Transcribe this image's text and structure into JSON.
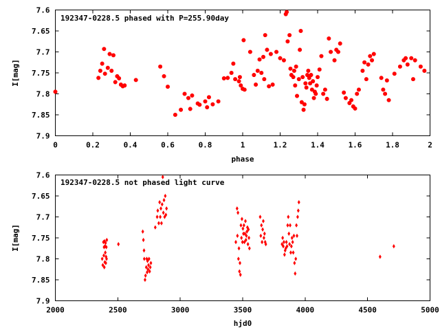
{
  "chart_data": [
    {
      "type": "scatter",
      "title": "192347-0228.5 phased with P=255.90day",
      "xlabel": "phase",
      "ylabel": "I[mag]",
      "xlim": [
        0,
        2
      ],
      "ylim": [
        7.6,
        7.9
      ],
      "y_inverted": true,
      "x_ticks": [
        "0",
        "0.2",
        "0.4",
        "0.6",
        "0.8",
        "1",
        "1.2",
        "1.4",
        "1.6",
        "1.8",
        "2"
      ],
      "y_ticks": [
        "7.6",
        "7.65",
        "7.7",
        "7.75",
        "7.8",
        "7.85",
        "7.9"
      ],
      "marker": "star",
      "color": "#ff0000",
      "series": [
        {
          "points": [
            [
              0.0,
              7.795
            ],
            [
              0.23,
              7.762
            ],
            [
              0.24,
              7.745
            ],
            [
              0.25,
              7.728
            ],
            [
              0.26,
              7.693
            ],
            [
              0.265,
              7.752
            ],
            [
              0.28,
              7.738
            ],
            [
              0.29,
              7.705
            ],
            [
              0.3,
              7.745
            ],
            [
              0.31,
              7.708
            ],
            [
              0.32,
              7.772
            ],
            [
              0.33,
              7.758
            ],
            [
              0.34,
              7.763
            ],
            [
              0.35,
              7.778
            ],
            [
              0.36,
              7.782
            ],
            [
              0.37,
              7.78
            ],
            [
              0.43,
              7.767
            ],
            [
              0.56,
              7.735
            ],
            [
              0.58,
              7.758
            ],
            [
              0.6,
              7.783
            ],
            [
              0.64,
              7.85
            ],
            [
              0.67,
              7.838
            ],
            [
              0.69,
              7.8
            ],
            [
              0.71,
              7.81
            ],
            [
              0.72,
              7.836
            ],
            [
              0.73,
              7.804
            ],
            [
              0.76,
              7.823
            ],
            [
              0.77,
              7.826
            ],
            [
              0.8,
              7.818
            ],
            [
              0.81,
              7.832
            ],
            [
              0.82,
              7.808
            ],
            [
              0.84,
              7.825
            ],
            [
              0.87,
              7.818
            ],
            [
              0.9,
              7.763
            ],
            [
              0.92,
              7.762
            ],
            [
              0.94,
              7.75
            ],
            [
              0.95,
              7.728
            ],
            [
              0.96,
              7.765
            ],
            [
              0.98,
              7.77
            ],
            [
              0.985,
              7.76
            ],
            [
              0.99,
              7.78
            ],
            [
              1.0,
              7.788
            ],
            [
              1.005,
              7.672
            ],
            [
              1.01,
              7.79
            ],
            [
              1.04,
              7.7
            ],
            [
              1.06,
              7.755
            ],
            [
              1.07,
              7.778
            ],
            [
              1.08,
              7.745
            ],
            [
              1.09,
              7.718
            ],
            [
              1.1,
              7.75
            ],
            [
              1.11,
              7.712
            ],
            [
              1.115,
              7.765
            ],
            [
              1.12,
              7.66
            ],
            [
              1.13,
              7.695
            ],
            [
              1.14,
              7.782
            ],
            [
              1.15,
              7.705
            ],
            [
              1.16,
              7.778
            ],
            [
              1.18,
              7.7
            ],
            [
              1.2,
              7.715
            ],
            [
              1.22,
              7.72
            ],
            [
              1.23,
              7.61
            ],
            [
              1.235,
              7.605
            ],
            [
              1.24,
              7.675
            ],
            [
              1.25,
              7.66
            ],
            [
              1.255,
              7.74
            ],
            [
              1.26,
              7.755
            ],
            [
              1.27,
              7.76
            ],
            [
              1.275,
              7.745
            ],
            [
              1.28,
              7.78
            ],
            [
              1.285,
              7.735
            ],
            [
              1.29,
              7.805
            ],
            [
              1.3,
              7.765
            ],
            [
              1.305,
              7.695
            ],
            [
              1.31,
              7.65
            ],
            [
              1.315,
              7.82
            ],
            [
              1.32,
              7.76
            ],
            [
              1.325,
              7.838
            ],
            [
              1.33,
              7.825
            ],
            [
              1.335,
              7.775
            ],
            [
              1.34,
              7.785
            ],
            [
              1.345,
              7.755
            ],
            [
              1.35,
              7.745
            ],
            [
              1.355,
              7.762
            ],
            [
              1.36,
              7.775
            ],
            [
              1.365,
              7.755
            ],
            [
              1.37,
              7.79
            ],
            [
              1.375,
              7.77
            ],
            [
              1.38,
              7.81
            ],
            [
              1.385,
              7.795
            ],
            [
              1.39,
              7.8
            ],
            [
              1.395,
              7.78
            ],
            [
              1.4,
              7.76
            ],
            [
              1.41,
              7.742
            ],
            [
              1.42,
              7.71
            ],
            [
              1.43,
              7.8
            ],
            [
              1.44,
              7.79
            ],
            [
              1.45,
              7.812
            ],
            [
              1.46,
              7.668
            ],
            [
              1.47,
              7.7
            ],
            [
              1.49,
              7.72
            ],
            [
              1.5,
              7.695
            ],
            [
              1.51,
              7.7
            ],
            [
              1.52,
              7.68
            ],
            [
              1.54,
              7.797
            ],
            [
              1.55,
              7.81
            ],
            [
              1.57,
              7.822
            ],
            [
              1.58,
              7.815
            ],
            [
              1.59,
              7.83
            ],
            [
              1.6,
              7.835
            ],
            [
              1.61,
              7.8
            ],
            [
              1.62,
              7.79
            ],
            [
              1.64,
              7.745
            ],
            [
              1.65,
              7.725
            ],
            [
              1.66,
              7.765
            ],
            [
              1.67,
              7.73
            ],
            [
              1.68,
              7.71
            ],
            [
              1.69,
              7.72
            ],
            [
              1.7,
              7.705
            ],
            [
              1.74,
              7.762
            ],
            [
              1.75,
              7.79
            ],
            [
              1.76,
              7.8
            ],
            [
              1.77,
              7.768
            ],
            [
              1.78,
              7.815
            ],
            [
              1.81,
              7.752
            ],
            [
              1.84,
              7.735
            ],
            [
              1.86,
              7.72
            ],
            [
              1.87,
              7.715
            ],
            [
              1.88,
              7.73
            ],
            [
              1.9,
              7.715
            ],
            [
              1.91,
              7.765
            ],
            [
              1.92,
              7.72
            ],
            [
              1.95,
              7.735
            ],
            [
              1.97,
              7.745
            ]
          ]
        }
      ]
    },
    {
      "type": "scatter",
      "title": "192347-0228.5 not phased light curve",
      "xlabel": "hjd0",
      "ylabel": "I[mag]",
      "xlim": [
        2000,
        5000
      ],
      "ylim": [
        7.6,
        7.9
      ],
      "y_inverted": true,
      "x_ticks": [
        "2000",
        "2500",
        "3000",
        "3500",
        "4000",
        "4500",
        "5000"
      ],
      "y_ticks": [
        "7.6",
        "7.65",
        "7.7",
        "7.75",
        "7.8",
        "7.85",
        "7.9"
      ],
      "marker": "diamond",
      "color": "#ff0000",
      "series": [
        {
          "points": [
            [
              2375,
              7.8
            ],
            [
              2380,
              7.815
            ],
            [
              2385,
              7.76
            ],
            [
              2388,
              7.792
            ],
            [
              2390,
              7.772
            ],
            [
              2392,
              7.82
            ],
            [
              2394,
              7.758
            ],
            [
              2396,
              7.808
            ],
            [
              2398,
              7.77
            ],
            [
              2400,
              7.785
            ],
            [
              2402,
              7.762
            ],
            [
              2404,
              7.81
            ],
            [
              2406,
              7.795
            ],
            [
              2408,
              7.772
            ],
            [
              2410,
              7.8
            ],
            [
              2412,
              7.755
            ],
            [
              2505,
              7.765
            ],
            [
              2700,
              7.735
            ],
            [
              2705,
              7.755
            ],
            [
              2710,
              7.78
            ],
            [
              2712,
              7.8
            ],
            [
              2718,
              7.85
            ],
            [
              2722,
              7.84
            ],
            [
              2728,
              7.82
            ],
            [
              2732,
              7.8
            ],
            [
              2735,
              7.832
            ],
            [
              2738,
              7.805
            ],
            [
              2742,
              7.825
            ],
            [
              2746,
              7.815
            ],
            [
              2750,
              7.8
            ],
            [
              2755,
              7.83
            ],
            [
              2760,
              7.82
            ],
            [
              2765,
              7.81
            ],
            [
              2800,
              7.725
            ],
            [
              2815,
              7.7
            ],
            [
              2820,
              7.685
            ],
            [
              2828,
              7.715
            ],
            [
              2835,
              7.665
            ],
            [
              2840,
              7.7
            ],
            [
              2845,
              7.68
            ],
            [
              2850,
              7.715
            ],
            [
              2855,
              7.67
            ],
            [
              2860,
              7.605
            ],
            [
              2865,
              7.69
            ],
            [
              2870,
              7.66
            ],
            [
              2875,
              7.7
            ],
            [
              2880,
              7.65
            ],
            [
              2885,
              7.695
            ],
            [
              2890,
              7.68
            ],
            [
              3445,
              7.76
            ],
            [
              3455,
              7.68
            ],
            [
              3458,
              7.745
            ],
            [
              3462,
              7.69
            ],
            [
              3466,
              7.8
            ],
            [
              3470,
              7.775
            ],
            [
              3474,
              7.83
            ],
            [
              3478,
              7.81
            ],
            [
              3482,
              7.838
            ],
            [
              3486,
              7.72
            ],
            [
              3490,
              7.75
            ],
            [
              3494,
              7.705
            ],
            [
              3498,
              7.76
            ],
            [
              3502,
              7.728
            ],
            [
              3506,
              7.74
            ],
            [
              3510,
              7.72
            ],
            [
              3514,
              7.76
            ],
            [
              3518,
              7.74
            ],
            [
              3522,
              7.71
            ],
            [
              3526,
              7.755
            ],
            [
              3530,
              7.745
            ],
            [
              3534,
              7.735
            ],
            [
              3538,
              7.725
            ],
            [
              3542,
              7.765
            ],
            [
              3546,
              7.73
            ],
            [
              3550,
              7.75
            ],
            [
              3554,
              7.775
            ],
            [
              3640,
              7.7
            ],
            [
              3645,
              7.745
            ],
            [
              3650,
              7.72
            ],
            [
              3655,
              7.76
            ],
            [
              3660,
              7.73
            ],
            [
              3665,
              7.71
            ],
            [
              3670,
              7.75
            ],
            [
              3675,
              7.74
            ],
            [
              3680,
              7.76
            ],
            [
              3685,
              7.765
            ],
            [
              3815,
              7.765
            ],
            [
              3820,
              7.75
            ],
            [
              3825,
              7.77
            ],
            [
              3830,
              7.76
            ],
            [
              3835,
              7.79
            ],
            [
              3840,
              7.78
            ],
            [
              3845,
              7.775
            ],
            [
              3850,
              7.76
            ],
            [
              3855,
              7.77
            ],
            [
              3860,
              7.72
            ],
            [
              3865,
              7.7
            ],
            [
              3870,
              7.74
            ],
            [
              3875,
              7.765
            ],
            [
              3880,
              7.72
            ],
            [
              3885,
              7.785
            ],
            [
              3890,
              7.77
            ],
            [
              3895,
              7.75
            ],
            [
              3900,
              7.76
            ],
            [
              3905,
              7.785
            ],
            [
              3910,
              7.745
            ],
            [
              3915,
              7.81
            ],
            [
              3920,
              7.835
            ],
            [
              3925,
              7.8
            ],
            [
              3930,
              7.72
            ],
            [
              3935,
              7.745
            ],
            [
              3940,
              7.7
            ],
            [
              3945,
              7.685
            ],
            [
              3950,
              7.665
            ],
            [
              4600,
              7.795
            ],
            [
              4710,
              7.77
            ]
          ]
        }
      ]
    }
  ]
}
